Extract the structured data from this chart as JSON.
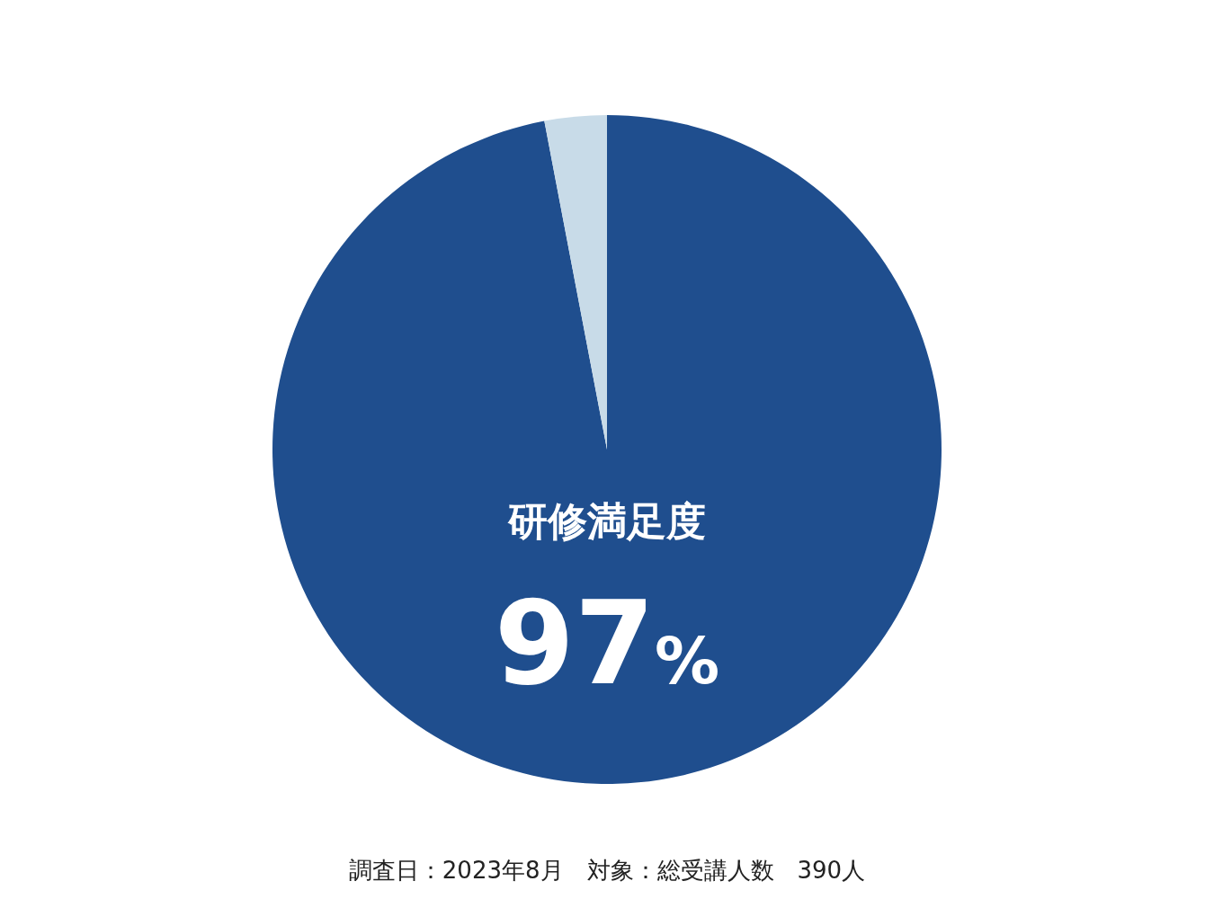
{
  "chart_data": {
    "type": "pie",
    "categories": [
      "研修満足度",
      null
    ],
    "values": [
      97,
      3
    ],
    "colors": [
      "#1f4e8e",
      "#c8dbe8"
    ],
    "value_labels": [
      "97%",
      null
    ],
    "annotations": [
      "調査日：2023年8月　対象：総受講人数　390人"
    ]
  }
}
